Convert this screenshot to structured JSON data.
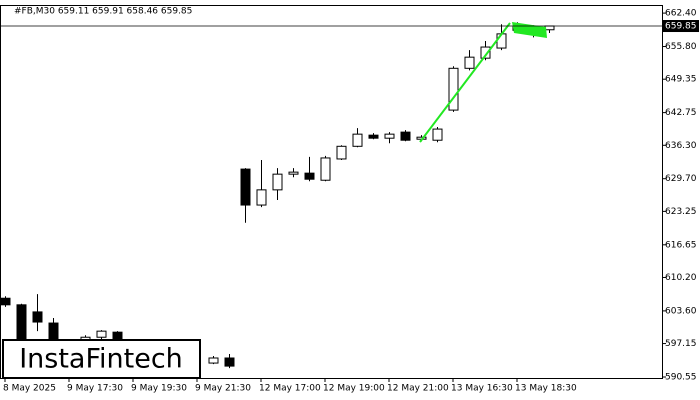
{
  "chart_data": {
    "type": "candlestick",
    "title": "#FB,M30  659.11 659.91 658.46 659.85",
    "logo": "InstaFintech",
    "categories": [
      "8 May 2025",
      null,
      null,
      null,
      "9 May 17:30",
      null,
      null,
      null,
      "9 May 19:30",
      null,
      null,
      null,
      "9 May 21:30",
      null,
      null,
      null,
      "12 May 17:00",
      null,
      null,
      null,
      "12 May 19:00",
      null,
      null,
      null,
      "12 May 21:00",
      null,
      null,
      null,
      "13 May 16:30",
      null,
      null,
      null,
      "13 May 18:30",
      null,
      null
    ],
    "open": [
      606.1,
      604.8,
      603.4,
      601.2,
      null,
      597.7,
      598.4,
      599.4,
      null,
      null,
      null,
      null,
      null,
      593.3,
      594.3,
      631.6,
      624.5,
      627.5,
      630.6,
      630.8,
      629.4,
      633.6,
      636.1,
      638.3,
      637.7,
      638.9,
      637.5,
      637.3,
      643.25,
      651.5,
      653.5,
      655.5,
      659.8,
      659.4,
      659.11
    ],
    "high": [
      606.5,
      605.0,
      606.9,
      602.2,
      null,
      598.8,
      599.8,
      599.6,
      null,
      null,
      null,
      null,
      null,
      594.7,
      595.1,
      631.8,
      633.4,
      631.8,
      631.8,
      634.0,
      634.2,
      636.3,
      639.7,
      638.7,
      638.9,
      639.3,
      638.3,
      639.9,
      651.9,
      655.1,
      656.9,
      660.2,
      660.6,
      660.0,
      659.91
    ],
    "low": [
      604.4,
      596.9,
      599.6,
      597.5,
      null,
      597.5,
      597.7,
      597.5,
      null,
      null,
      null,
      null,
      null,
      593.1,
      592.3,
      621.0,
      624.1,
      625.5,
      630.0,
      629.2,
      629.2,
      633.4,
      635.9,
      637.5,
      636.7,
      637.1,
      637.1,
      636.9,
      642.9,
      651.1,
      653.1,
      655.1,
      658.5,
      657.6,
      658.46
    ],
    "close": [
      604.8,
      597.9,
      601.4,
      597.9,
      null,
      598.4,
      599.6,
      597.9,
      null,
      null,
      null,
      null,
      null,
      594.3,
      592.7,
      624.5,
      627.5,
      630.6,
      631.0,
      629.6,
      633.8,
      636.1,
      638.5,
      637.7,
      638.5,
      637.3,
      637.9,
      639.5,
      651.5,
      653.7,
      655.7,
      658.3,
      659.0,
      658.8,
      659.85
    ],
    "up_color": "#ffffff",
    "down_color": "#000000",
    "ylim": [
      590.35,
      664.0
    ],
    "yticks": [
      {
        "value": 662.4,
        "label": "662.40"
      },
      {
        "value": 655.8,
        "label": "655.80"
      },
      649.35,
      642.75,
      {
        "value": 636.3,
        "label": "636.30"
      },
      {
        "value": 629.7,
        "label": "629.70"
      },
      623.25,
      616.65,
      {
        "value": 610.2,
        "label": "610.20"
      },
      {
        "value": 603.6,
        "label": "603.60"
      },
      597.15,
      590.55
    ],
    "last_price": {
      "value": 659.85,
      "label": "659.85"
    }
  }
}
